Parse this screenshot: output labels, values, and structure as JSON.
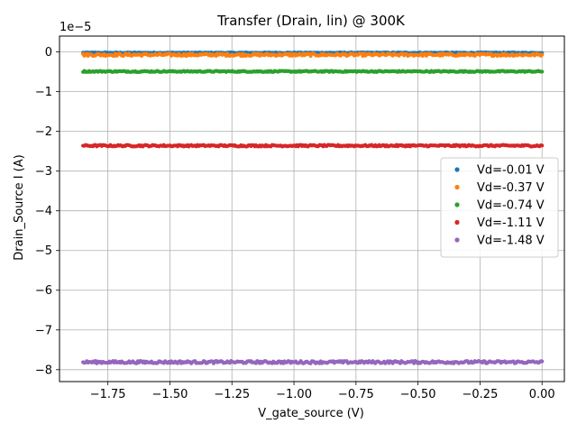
{
  "chart_data": {
    "type": "scatter",
    "title": "Transfer (Drain, lin) @ 300K",
    "xlabel": "V_gate_source (V)",
    "ylabel": "Drain_Source I (A)",
    "y_offset_label": "1e−5",
    "xlim": [
      -1.945,
      0.09
    ],
    "ylim": [
      -8.3,
      0.4
    ],
    "y_scale": 1e-05,
    "x_ticks": [
      -1.75,
      -1.5,
      -1.25,
      -1.0,
      -0.75,
      -0.5,
      -0.25,
      0.0
    ],
    "x_tick_labels": [
      "−1.75",
      "−1.50",
      "−1.25",
      "−1.00",
      "−0.75",
      "−0.50",
      "−0.25",
      "0.00"
    ],
    "y_ticks": [
      0,
      -1,
      -2,
      -3,
      -4,
      -5,
      -6,
      -7,
      -8
    ],
    "y_tick_labels": [
      "0",
      "−1",
      "−2",
      "−3",
      "−4",
      "−5",
      "−6",
      "−7",
      "−8"
    ],
    "grid": true,
    "legend_position": "center-right",
    "x_range": [
      -1.85,
      0.0
    ],
    "points_per_series": 370,
    "series": [
      {
        "name": "Vd=-0.01 V",
        "color": "#1f77b4",
        "y_mean": -0.02,
        "noise": 0.01
      },
      {
        "name": "Vd=-0.37 V",
        "color": "#ff7f0e",
        "y_mean": -0.07,
        "noise": 0.03
      },
      {
        "name": "Vd=-0.74 V",
        "color": "#2ca02c",
        "y_mean": -0.49,
        "noise": 0.015
      },
      {
        "name": "Vd=-1.11 V",
        "color": "#d62728",
        "y_mean": -2.36,
        "noise": 0.02
      },
      {
        "name": "Vd=-1.48 V",
        "color": "#9467bd",
        "y_mean": -7.81,
        "noise": 0.03
      }
    ]
  }
}
